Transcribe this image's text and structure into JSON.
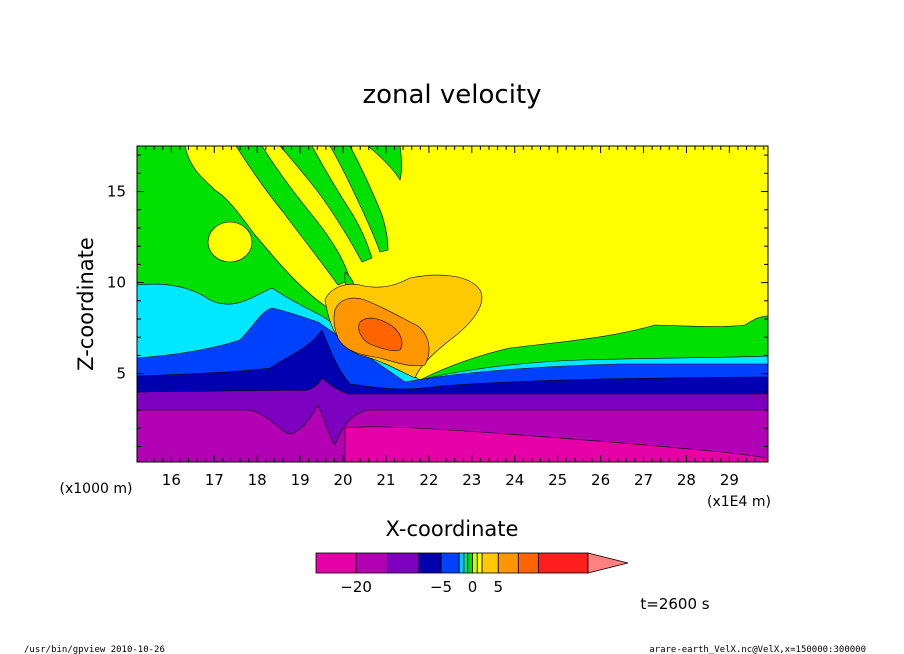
{
  "chart_data": {
    "type": "heatmap",
    "title": "zonal velocity",
    "xlabel": "X-coordinate",
    "ylabel": "Z-coordinate",
    "x_unit_note": "(x1E4 m)",
    "y_unit_note": "(x1000 m)",
    "xlim": [
      15.2,
      29.9
    ],
    "ylim": [
      0.15,
      17.5
    ],
    "x_ticks": [
      16,
      17,
      18,
      19,
      20,
      21,
      22,
      23,
      24,
      25,
      26,
      27,
      28,
      29
    ],
    "y_ticks": [
      5,
      10,
      15
    ],
    "colorbar": {
      "levels": [
        -25,
        -20,
        -15,
        -10,
        -5,
        -3,
        -2,
        -1,
        0,
        1,
        2,
        5,
        10,
        15,
        20
      ],
      "colors": [
        "#e600a8",
        "#b400b4",
        "#7d00c0",
        "#0000b0",
        "#0040ff",
        "#00c8ff",
        "#00e0a0",
        "#00e000",
        "#c8ff00",
        "#ffff00",
        "#ffc800",
        "#ff9600",
        "#ff6400",
        "#ff1e1e",
        "#ff8080"
      ],
      "labels": [
        "-20",
        "-5",
        "0",
        "5"
      ]
    },
    "annotation": "t=2600 s"
  },
  "footer": {
    "left": "/usr/bin/gpview  2010-10-26",
    "right": "arare-earth_VelX.nc@VelX,x=150000:300000"
  }
}
